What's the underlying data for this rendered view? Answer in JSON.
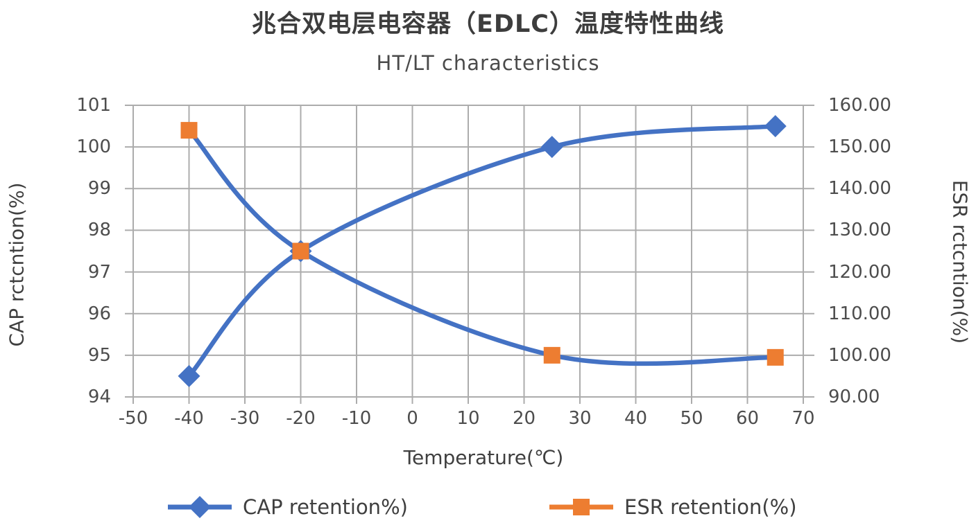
{
  "theme": {
    "background": "#ffffff",
    "grid_color": "#acacac",
    "text_color": "#3f3f3f",
    "tick_text_color": "#4d4d4d",
    "cap_series_color": "#4472c4",
    "esr_marker_color": "#ed7d31",
    "line_color": "#4472c4"
  },
  "chart_data": {
    "type": "line",
    "title": "兆合双电层电容器（EDLC）温度特性曲线",
    "subtitle": "HT/LT characteristics",
    "xlabel": "Temperature(℃)",
    "ylabel_left": "CAP rctcntion(%)",
    "ylabel_right": "ESR rctcntion(%)",
    "xlim": [
      -50,
      70
    ],
    "ylim_left": [
      94,
      101
    ],
    "ylim_right": [
      90,
      160
    ],
    "x_ticks": [
      -50,
      -40,
      -30,
      -20,
      -10,
      0,
      10,
      20,
      30,
      40,
      50,
      60,
      70
    ],
    "y_ticks_left": [
      "101",
      "100",
      "99",
      "98",
      "97",
      "96",
      "95",
      "94"
    ],
    "y_ticks_right": [
      "160.00",
      "150.00",
      "140.00",
      "130.00",
      "120.00",
      "110.00",
      "100.00",
      "90.00"
    ],
    "grid": true,
    "legend_position": "bottom",
    "series": [
      {
        "name": "CAP retention%)",
        "axis": "left",
        "marker": "diamond",
        "marker_color": "#4472c4",
        "line_color": "#4472c4",
        "x": [
          -40,
          -20,
          25,
          65
        ],
        "values": [
          94.5,
          97.5,
          100,
          100.5
        ]
      },
      {
        "name": "ESR retention(%)",
        "axis": "right",
        "marker": "square",
        "marker_color": "#ed7d31",
        "line_color": "#4472c4",
        "legend_line_color": "#ed7d31",
        "x": [
          -40,
          -20,
          25,
          65
        ],
        "values": [
          154,
          125,
          100,
          99.5
        ]
      }
    ]
  }
}
